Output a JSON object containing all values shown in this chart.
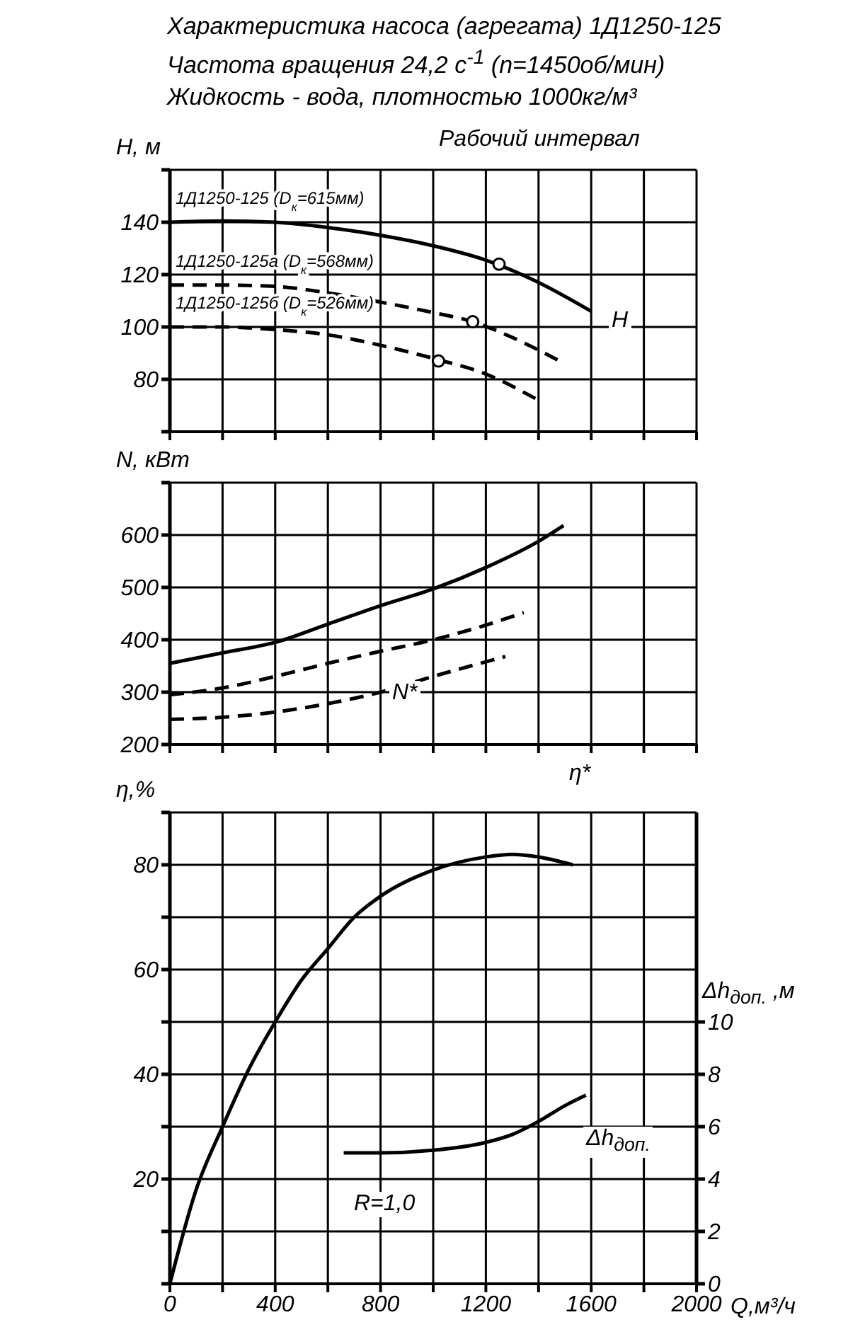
{
  "chart_data": [
    {
      "type": "line",
      "title": "Характеристика насоса (агрегата) 1Д1250-125",
      "subtitle": "Частота вращения 24,2 с$^{-1}$ (n=1450об/мин)\nЖидкость - вода, плотностью 1000кг/м³",
      "ylabel": "H, м",
      "xlim": [
        0,
        2000
      ],
      "xticks": [
        0,
        {
          "value": 200,
          "label": null
        },
        400,
        {
          "value": 600,
          "label": null
        },
        800,
        {
          "value": 1000,
          "label": null
        },
        1200,
        {
          "value": 1400,
          "label": null
        },
        1600,
        {
          "value": 1800,
          "label": null
        },
        2000
      ],
      "ylim": [
        60,
        160
      ],
      "yticks": [
        {
          "value": 60,
          "label": null
        },
        80,
        100,
        120,
        140,
        {
          "value": 160,
          "label": null
        }
      ],
      "tick_labels": "y",
      "grid": true,
      "marker": "none",
      "series": [
        {
          "name": "1Д1250-125 (D$_{к}$=615мм)",
          "color": "#000000",
          "line_style": "solid",
          "x": [
            0,
            200,
            400,
            600,
            800,
            1000,
            1200,
            1400,
            1600
          ],
          "values": [
            140,
            140.5,
            140,
            138,
            135,
            131,
            125.5,
            117,
            106
          ]
        },
        {
          "name": "1Д1250-125а (D$_{к}$=568мм)",
          "color": "#000000",
          "line_style": "dashed",
          "x": [
            0,
            200,
            400,
            600,
            800,
            1000,
            1150,
            1300,
            1480
          ],
          "values": [
            116,
            116,
            115.5,
            113,
            109.5,
            105.5,
            102,
            96,
            87
          ]
        },
        {
          "name": "1Д1250-125б (D$_{к}$=526мм)",
          "color": "#000000",
          "line_style": "dashed",
          "x": [
            0,
            200,
            400,
            600,
            800,
            1000,
            1200,
            1400
          ],
          "values": [
            100,
            100,
            99,
            97,
            93,
            88,
            82,
            72
          ]
        },
        {
          "type": "scatter",
          "color": "#000000",
          "marker": "circle",
          "x": [
            1250,
            1150,
            1020
          ],
          "values": [
            124,
            102,
            87
          ]
        }
      ],
      "annotations": [
        "Рабочий интервал",
        "H"
      ]
    },
    {
      "type": "line",
      "ylabel": "N, кВт",
      "xlim": [
        0,
        2000
      ],
      "xticks": [
        0,
        {
          "value": 200,
          "label": null
        },
        400,
        {
          "value": 600,
          "label": null
        },
        800,
        {
          "value": 1000,
          "label": null
        },
        1200,
        {
          "value": 1400,
          "label": null
        },
        1600,
        {
          "value": 1800,
          "label": null
        },
        2000
      ],
      "ylim": [
        200,
        700
      ],
      "yticks": [
        200,
        300,
        400,
        500,
        600,
        {
          "value": 700,
          "label": null
        }
      ],
      "tick_labels": "y",
      "grid": true,
      "marker": "none",
      "series": [
        {
          "color": "#000000",
          "line_style": "solid",
          "x": [
            0,
            200,
            400,
            600,
            800,
            1000,
            1200,
            1400,
            1495
          ],
          "values": [
            355,
            375,
            395,
            430,
            465,
            497,
            538,
            588,
            618
          ]
        },
        {
          "color": "#000000",
          "line_style": "dashed",
          "x": [
            0,
            200,
            400,
            600,
            800,
            1000,
            1200,
            1344
          ],
          "values": [
            295,
            308,
            330,
            355,
            378,
            400,
            428,
            452
          ]
        },
        {
          "color": "#000000",
          "line_style": "dashed",
          "x": [
            0,
            200,
            400,
            600,
            800,
            1000,
            1274
          ],
          "values": [
            248,
            252,
            262,
            278,
            300,
            330,
            368
          ]
        }
      ],
      "annotations": [
        "N*"
      ]
    },
    {
      "type": "line",
      "ylabel": "η,%",
      "xlabel": "Q,м³/ч",
      "y2label": "Δh$_{доп.}$ ,м",
      "xlim": [
        0,
        2000
      ],
      "xticks": [
        0,
        {
          "value": 200,
          "label": null
        },
        400,
        {
          "value": 600,
          "label": null
        },
        800,
        {
          "value": 1000,
          "label": null
        },
        1200,
        {
          "value": 1400,
          "label": null
        },
        1600,
        {
          "value": 1800,
          "label": null
        },
        2000
      ],
      "ylim": [
        0,
        90
      ],
      "yticks": [
        {
          "value": 0,
          "label": null
        },
        {
          "value": 10,
          "label": null
        },
        20,
        {
          "value": 30,
          "label": null
        },
        40,
        {
          "value": 50,
          "label": null
        },
        60,
        {
          "value": 70,
          "label": null
        },
        80,
        {
          "value": 90,
          "label": null
        }
      ],
      "y2lim": [
        0,
        18
      ],
      "y2ticks": [
        0,
        2,
        4,
        6,
        8,
        10
      ],
      "grid": true,
      "marker": "none",
      "series": [
        {
          "color": "#000000",
          "line_style": "solid",
          "x": [
            0,
            100,
            200,
            300,
            400,
            500,
            600,
            700,
            800,
            1000,
            1200,
            1300,
            1400,
            1530
          ],
          "values": [
            0,
            18,
            30,
            41,
            50,
            58,
            64,
            70,
            74,
            79,
            81.5,
            82,
            81.5,
            80
          ]
        },
        {
          "color": "#000000",
          "line_style": "solid",
          "axis": "y2",
          "x": [
            660,
            800,
            1000,
            1200,
            1300,
            1400,
            1500,
            1580
          ],
          "values": [
            5,
            5,
            5.1,
            5.4,
            5.7,
            6.2,
            6.8,
            7.2
          ]
        }
      ],
      "annotations": [
        "η*",
        "Δh$_{доп.}$",
        "R=1,0"
      ]
    }
  ]
}
